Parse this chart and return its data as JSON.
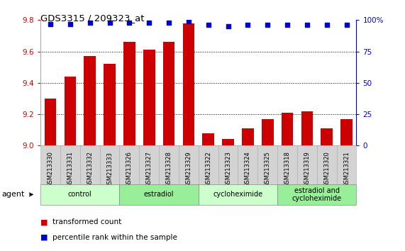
{
  "title": "GDS3315 / 209323_at",
  "samples": [
    "GSM213330",
    "GSM213331",
    "GSM213332",
    "GSM213333",
    "GSM213326",
    "GSM213327",
    "GSM213328",
    "GSM213329",
    "GSM213322",
    "GSM213323",
    "GSM213324",
    "GSM213325",
    "GSM213318",
    "GSM213319",
    "GSM213320",
    "GSM213321"
  ],
  "bar_values": [
    9.3,
    9.44,
    9.57,
    9.52,
    9.66,
    9.61,
    9.66,
    9.78,
    9.08,
    9.04,
    9.11,
    9.17,
    9.21,
    9.22,
    9.11,
    9.17
  ],
  "percentile_values": [
    97,
    97,
    98,
    98,
    98,
    98,
    98,
    99,
    96,
    95,
    96,
    96,
    96,
    96,
    96,
    96
  ],
  "bar_color": "#cc0000",
  "dot_color": "#0000cc",
  "ylim_left": [
    9.0,
    9.8
  ],
  "ylim_right": [
    0,
    100
  ],
  "yticks_left": [
    9.0,
    9.2,
    9.4,
    9.6,
    9.8
  ],
  "yticks_right": [
    0,
    25,
    50,
    75,
    100
  ],
  "grid_values": [
    9.2,
    9.4,
    9.6
  ],
  "groups": [
    {
      "label": "control",
      "start": 0,
      "end": 4,
      "color": "#ccffcc"
    },
    {
      "label": "estradiol",
      "start": 4,
      "end": 8,
      "color": "#99ee99"
    },
    {
      "label": "cycloheximide",
      "start": 8,
      "end": 12,
      "color": "#ccffcc"
    },
    {
      "label": "estradiol and\ncycloheximide",
      "start": 12,
      "end": 16,
      "color": "#99ee99"
    }
  ],
  "legend_bar_label": "transformed count",
  "legend_dot_label": "percentile rank within the sample",
  "xlabel_agent": "agent",
  "background_color": "#ffffff",
  "tick_label_color_left": "#cc0000",
  "tick_label_color_right": "#0000cc",
  "bar_bottom": 9.0,
  "sample_cell_color": "#d3d3d3",
  "sample_cell_edge": "#aaaaaa"
}
